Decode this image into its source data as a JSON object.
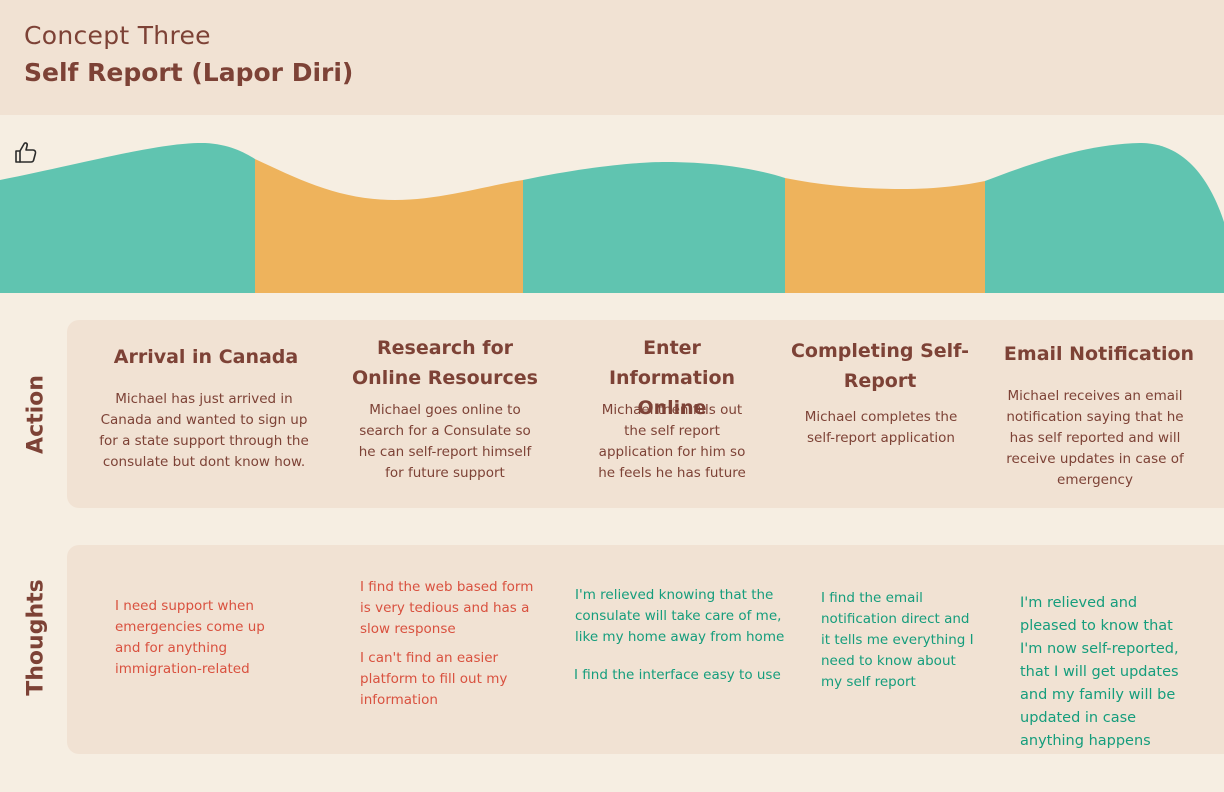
{
  "header": {
    "subtitle": "Concept Three",
    "title": "Self Report (Lapor Diri)"
  },
  "colors": {
    "positive": "#60c4b0",
    "neutral": "#eeb35c",
    "heading": "#7d4236",
    "negative_text": "#d9513f",
    "positive_text": "#159d7c"
  },
  "emotion_icon": "thumbs-up-icon",
  "rows": {
    "action_label": "Action",
    "thoughts_label": "Thoughts"
  },
  "stages": [
    {
      "title": "Arrival in Canada",
      "description": "Michael has just arrived in Canada and wanted to sign up for a state support through the consulate but dont know how.",
      "thoughts": [
        "I need support when emergencies come up and for anything immigration-related"
      ]
    },
    {
      "title": "Research for Online Resources",
      "description": "Michael goes online to search for a Consulate so he can self-report himself for future support",
      "thoughts": [
        "I find the web based form is very tedious and has a slow response",
        "I can't find an easier platform to fill out my information"
      ]
    },
    {
      "title": "Enter Information Online",
      "description": "Michael then fills out the self report application for him so he feels he has future",
      "thoughts": [
        "I'm relieved knowing that the consulate will take care of me, like my home away from home",
        "I find the interface easy to use"
      ]
    },
    {
      "title": "Completing Self-Report",
      "description": "Michael completes the self-report application",
      "thoughts": [
        "I find the email notification direct and it tells me everything I need to know about my self report"
      ]
    },
    {
      "title": "Email Notification",
      "description": "Michael receives an email notification saying that he has self reported and will receive updates in case of emergency",
      "thoughts": [
        "I'm relieved and pleased to know that I'm now self-reported, that I will get updates and my family will be updated in case anything happens"
      ]
    }
  ]
}
